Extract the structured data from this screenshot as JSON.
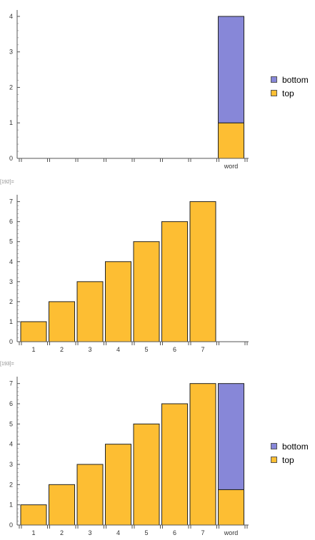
{
  "cells": {
    "first_label": "",
    "second_label": "[192]=",
    "third_label": "[193]="
  },
  "colors": {
    "top": "#FDBE33",
    "bottom": "#8787D8",
    "outline": "#222222",
    "axis": "#555555"
  },
  "legend": {
    "bottom": "bottom",
    "top": "top"
  },
  "chart_data": [
    {
      "type": "bar",
      "stacked": true,
      "categories": [
        "",
        "",
        "",
        "",
        "",
        "",
        "",
        "word"
      ],
      "series": [
        {
          "name": "top",
          "values": [
            0,
            0,
            0,
            0,
            0,
            0,
            0,
            1
          ]
        },
        {
          "name": "bottom",
          "values": [
            0,
            0,
            0,
            0,
            0,
            0,
            0,
            3
          ]
        }
      ],
      "ylim": [
        0,
        4.1
      ],
      "yticks": [
        "0",
        "1",
        "2",
        "3",
        "4"
      ],
      "legend": "right"
    },
    {
      "type": "bar",
      "categories": [
        "1",
        "2",
        "3",
        "4",
        "5",
        "6",
        "7",
        ""
      ],
      "series": [
        {
          "values": [
            1,
            2,
            3,
            4,
            5,
            6,
            7,
            0
          ]
        }
      ],
      "ylim": [
        0,
        7.2
      ],
      "yticks": [
        "0",
        "1",
        "2",
        "3",
        "4",
        "5",
        "6",
        "7"
      ]
    },
    {
      "type": "bar",
      "stacked": true,
      "categories": [
        "1",
        "2",
        "3",
        "4",
        "5",
        "6",
        "7",
        "word"
      ],
      "series": [
        {
          "name": "top",
          "values": [
            1,
            2,
            3,
            4,
            5,
            6,
            7,
            1.75
          ]
        },
        {
          "name": "bottom",
          "values": [
            0,
            0,
            0,
            0,
            0,
            0,
            0,
            5.25
          ]
        }
      ],
      "ylim": [
        0,
        7.2
      ],
      "yticks": [
        "0",
        "1",
        "2",
        "3",
        "4",
        "5",
        "6",
        "7"
      ],
      "legend": "right"
    }
  ]
}
